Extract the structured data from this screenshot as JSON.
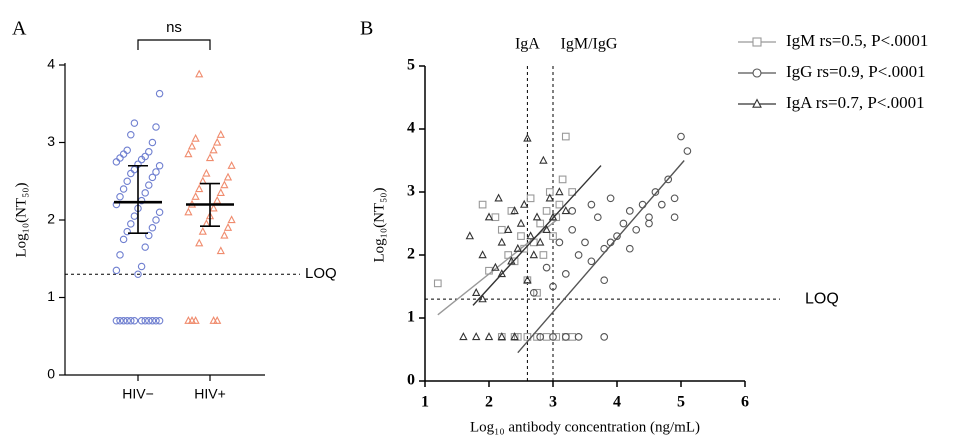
{
  "chart_data": [
    {
      "type": "strip",
      "label": "A",
      "ylabel": "Log₁₀(NT₅₀)",
      "categories": [
        "HIV−",
        "HIV+"
      ],
      "ylim": [
        0,
        4
      ],
      "yticks": [
        0,
        1,
        2,
        3,
        4
      ],
      "comparison": "ns",
      "hline": {
        "value": 1.3,
        "label": "LOQ"
      },
      "groups": [
        {
          "color": "#6f7fd0",
          "marker": "circle",
          "median": 2.23,
          "iqr": [
            1.83,
            2.7
          ],
          "values": [
            0.7,
            0.7,
            0.7,
            0.7,
            0.7,
            0.7,
            0.7,
            0.7,
            0.7,
            0.7,
            0.7,
            0.7,
            1.3,
            1.35,
            1.4,
            1.55,
            1.65,
            1.75,
            1.8,
            1.85,
            1.9,
            1.95,
            2.0,
            2.05,
            2.1,
            2.15,
            2.2,
            2.25,
            2.3,
            2.35,
            2.4,
            2.45,
            2.5,
            2.55,
            2.6,
            2.62,
            2.65,
            2.7,
            2.72,
            2.75,
            2.78,
            2.8,
            2.82,
            2.85,
            2.88,
            2.9,
            3.0,
            3.1,
            3.2,
            3.25,
            3.63
          ]
        },
        {
          "color": "#f08c6e",
          "marker": "triangle",
          "median": 2.2,
          "iqr": [
            1.92,
            2.47
          ],
          "values": [
            0.7,
            0.7,
            0.7,
            0.7,
            0.7,
            1.6,
            1.7,
            1.8,
            1.85,
            1.9,
            1.95,
            2.0,
            2.05,
            2.1,
            2.15,
            2.2,
            2.25,
            2.3,
            2.35,
            2.4,
            2.45,
            2.5,
            2.55,
            2.6,
            2.7,
            2.8,
            2.85,
            2.9,
            2.95,
            3.0,
            3.05,
            3.1,
            3.88
          ]
        }
      ]
    },
    {
      "type": "scatter",
      "label": "B",
      "ylabel": "Log₁₀(NT₅₀)",
      "xlabel": "Log₁₀ antibody concentration (ng/mL)",
      "xlim": [
        1,
        6
      ],
      "xticks": [
        1,
        2,
        3,
        4,
        5,
        6
      ],
      "ylim": [
        0,
        5
      ],
      "yticks": [
        0,
        1,
        2,
        3,
        4,
        5
      ],
      "vlines": [
        {
          "value": 2.6,
          "label": "IgA"
        },
        {
          "value": 3.0,
          "label": "IgM/IgG"
        }
      ],
      "hline": {
        "value": 1.3,
        "label": "LOQ"
      },
      "series": [
        {
          "name": "IgM rs=0.5, P<.0001",
          "color": "#999999",
          "marker": "square",
          "x": [
            1.2,
            1.9,
            2.0,
            2.1,
            2.2,
            2.3,
            2.35,
            2.4,
            2.5,
            2.55,
            2.6,
            2.65,
            2.7,
            2.75,
            2.8,
            2.85,
            2.9,
            2.95,
            3.0,
            3.05,
            3.1,
            3.15,
            3.2,
            3.3,
            2.45,
            2.6,
            2.75,
            2.9,
            3.05,
            3.2,
            3.3,
            2.2,
            2.4
          ],
          "values": [
            1.55,
            2.8,
            1.75,
            2.6,
            2.4,
            2.0,
            2.7,
            1.9,
            2.3,
            2.1,
            1.6,
            2.9,
            2.2,
            1.4,
            2.5,
            2.0,
            2.7,
            3.0,
            2.3,
            2.6,
            2.8,
            3.2,
            3.88,
            3.0,
            0.7,
            0.7,
            0.7,
            0.7,
            0.7,
            0.7,
            0.7,
            0.7,
            0.7
          ],
          "fit": {
            "x": [
              1.2,
              3.05
            ],
            "y": [
              1.05,
              2.55
            ]
          }
        },
        {
          "name": "IgG rs=0.9, P<.0001",
          "color": "#555555",
          "marker": "circle",
          "x": [
            2.7,
            2.9,
            3.0,
            3.1,
            3.2,
            3.3,
            3.4,
            3.5,
            3.6,
            3.7,
            3.8,
            3.9,
            4.0,
            4.1,
            4.2,
            4.3,
            4.4,
            4.5,
            4.6,
            4.7,
            4.8,
            4.9,
            5.0,
            5.1,
            3.3,
            3.6,
            3.9,
            4.2,
            4.5,
            4.9,
            3.8,
            2.8,
            3.0,
            3.2,
            3.4,
            3.8
          ],
          "values": [
            1.4,
            1.8,
            1.5,
            2.2,
            1.7,
            2.4,
            2.0,
            2.2,
            1.9,
            2.6,
            2.1,
            2.9,
            2.3,
            2.5,
            2.7,
            2.4,
            2.8,
            2.6,
            3.0,
            2.8,
            3.2,
            2.9,
            3.88,
            3.65,
            2.7,
            2.8,
            2.2,
            2.1,
            2.5,
            2.6,
            1.6,
            0.7,
            0.7,
            0.7,
            0.7,
            0.7
          ],
          "fit": {
            "x": [
              2.45,
              5.05
            ],
            "y": [
              0.45,
              3.5
            ]
          }
        },
        {
          "name": "IgA rs=0.7, P<.0001",
          "color": "#333333",
          "marker": "triangle",
          "x": [
            1.7,
            1.8,
            1.9,
            2.0,
            2.1,
            2.15,
            2.2,
            2.3,
            2.35,
            2.4,
            2.45,
            2.5,
            2.55,
            2.6,
            2.65,
            2.7,
            2.75,
            2.8,
            2.85,
            2.9,
            2.95,
            3.0,
            3.1,
            3.2,
            2.6,
            1.9,
            2.2,
            1.6,
            1.8,
            2.0,
            2.2,
            2.4
          ],
          "values": [
            2.3,
            1.4,
            2.0,
            2.6,
            1.8,
            2.9,
            2.2,
            2.4,
            1.9,
            2.7,
            2.1,
            2.5,
            2.8,
            3.85,
            2.3,
            2.0,
            2.6,
            2.2,
            3.5,
            2.4,
            2.9,
            2.6,
            3.0,
            2.7,
            1.6,
            1.3,
            1.7,
            0.7,
            0.7,
            0.7,
            0.7,
            0.7
          ],
          "fit": {
            "x": [
              1.75,
              3.75
            ],
            "y": [
              1.2,
              3.42
            ]
          }
        }
      ]
    }
  ]
}
